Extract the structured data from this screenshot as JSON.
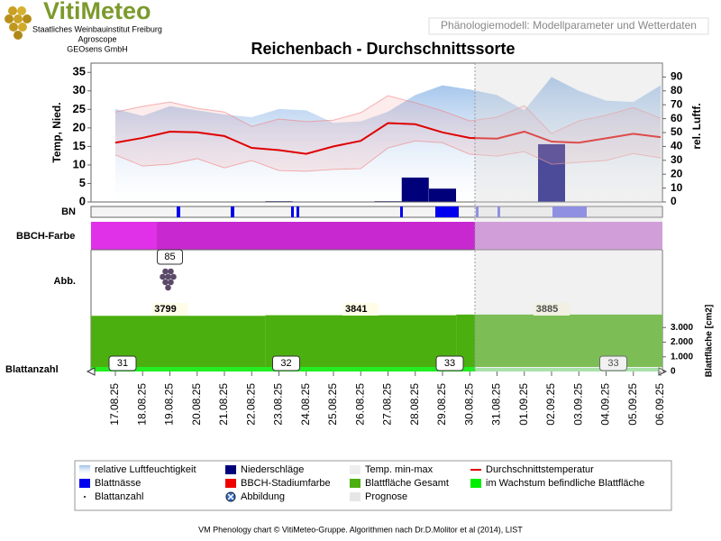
{
  "header": {
    "logo": "VitiMeteo",
    "institutions": [
      "Staatliches Weinbauinstitut Freiburg",
      "Agroscope",
      "GEOsens GmbH"
    ],
    "tab": "Phänologiemodell: Modellparameter und Wetterdaten"
  },
  "chart_data": [
    {
      "type": "line",
      "title": "Reichenbach - Durchschnittssorte",
      "y_label": "Temp, Nied.",
      "y2_label": "rel. Luftf.",
      "categories": [
        "17.08.25",
        "18.08.25",
        "19.08.25",
        "20.08.25",
        "21.08.25",
        "22.08.25",
        "23.08.25",
        "24.08.25",
        "25.08.25",
        "26.08.25",
        "27.08.25",
        "28.08.25",
        "29.08.25",
        "30.08.25",
        "31.08.25",
        "01.09.25",
        "02.09.25",
        "03.09.25",
        "04.09.25",
        "05.09.25",
        "06.09.25"
      ],
      "ylim": [
        0,
        37.5
      ],
      "yticks": [
        0,
        5,
        10,
        15,
        20,
        25,
        30,
        35
      ],
      "y2lim": [
        0,
        100
      ],
      "y2ticks": [
        0,
        10,
        20,
        30,
        40,
        50,
        60,
        70,
        80,
        90
      ],
      "series": [
        {
          "name": "relative Luftfeuchtigkeit",
          "type": "area",
          "axis": "y2",
          "color": "#a8c8ec",
          "values": [
            67,
            62,
            69,
            66,
            63,
            61,
            67,
            66,
            57,
            58,
            65,
            77,
            84,
            81,
            77,
            66,
            90,
            80,
            73,
            72,
            84
          ]
        },
        {
          "name": "Niederschläge",
          "type": "bar",
          "color": "#00007a",
          "values": [
            0,
            0,
            0,
            0,
            0,
            0,
            0.2,
            0,
            0,
            0,
            0.2,
            6.6,
            3.6,
            0,
            0,
            0,
            15.6,
            0,
            0,
            0,
            0
          ]
        },
        {
          "name": "Temp. min-max",
          "type": "band",
          "color": "#f08080",
          "low": [
            12.7,
            9.7,
            10.2,
            11.7,
            9.2,
            11.2,
            8.5,
            8.3,
            8.8,
            9,
            14.6,
            16.5,
            16,
            12.9,
            12.4,
            13.6,
            10.2,
            10.7,
            11.2,
            13.1,
            11.9
          ],
          "high": [
            24.3,
            25.8,
            27,
            25.3,
            24.3,
            20.4,
            22.4,
            21.7,
            22.1,
            24.1,
            28.7,
            26.8,
            24.6,
            21.9,
            22.9,
            26,
            18.5,
            21.9,
            23.4,
            25.5,
            22.6
          ]
        },
        {
          "name": "Durchschnittstemperatur",
          "type": "line",
          "color": "#e00000",
          "values": [
            16,
            17.3,
            19,
            18.8,
            17.8,
            14.6,
            14,
            13,
            15,
            16.5,
            21.3,
            21,
            18.8,
            17.3,
            17.1,
            19,
            16.3,
            16,
            17.2,
            18.4,
            17.5
          ]
        }
      ]
    },
    {
      "type": "area",
      "y2_label": "Blattfläche [cm2]",
      "ylim": [
        0,
        4000
      ],
      "yticks": [
        0,
        {
          "value": 1000,
          "label": "1.000"
        },
        {
          "value": 2000,
          "label": "2.000"
        },
        {
          "value": 3000,
          "label": "3.000"
        }
      ],
      "series": [
        {
          "name": "Blattfläche Gesamt",
          "color": "#4caf10",
          "points": [
            {
              "date": "19.08.25",
              "value": 3799
            },
            {
              "date": "26.08.25",
              "value": 3841
            },
            {
              "date": "02.09.25",
              "value": 3885
            }
          ]
        }
      ],
      "leaf_count": [
        {
          "date": "17.08.25",
          "value": 31
        },
        {
          "date": "23.08.25",
          "value": 32
        },
        {
          "date": "29.08.25",
          "value": 33
        },
        {
          "date": "04.09.25",
          "value": 33
        }
      ],
      "figure_labels": [
        {
          "date": "19.08.25",
          "value": 85
        }
      ]
    }
  ],
  "rows": {
    "bn": "BN",
    "bbch": "BBCH-Farbe",
    "abb": "Abb.",
    "count": "Blattanzahl"
  },
  "legend_extra": [
    {
      "label": "Blattnässe",
      "color": "#0000ee"
    },
    {
      "label": "BBCH-Stadiumfarbe",
      "color": "#ee0000"
    },
    {
      "label": "im Wachstum befindliche Blattfläche",
      "color": "#00ee00"
    },
    {
      "label": "Blattanzahl"
    },
    {
      "label": "Abbildung"
    },
    {
      "label": "Prognose",
      "color": "#e6e6e6"
    }
  ],
  "footer": "VM Phenology chart © VitiMeteo-Gruppe. Algorithmen nach Dr.D.Molitor et al (2014), LIST"
}
